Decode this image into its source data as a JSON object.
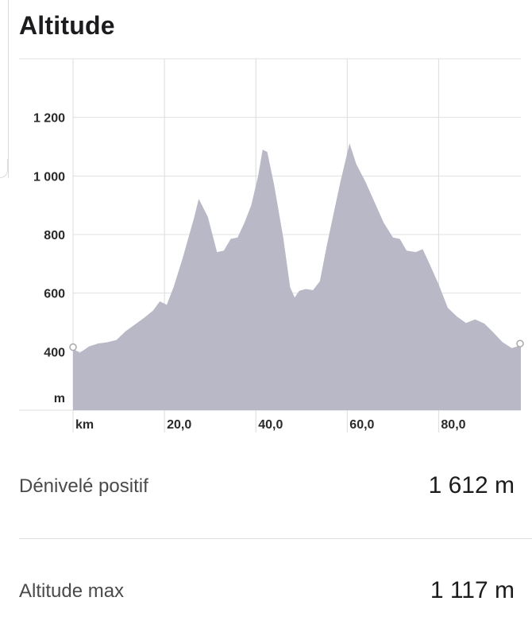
{
  "title": "Altitude",
  "chart_data": {
    "type": "area",
    "color": "#b9b8c6",
    "grid": true,
    "xlabel": "km",
    "ylabel": "m",
    "xlim": [
      0,
      98
    ],
    "ylim": [
      200,
      1400
    ],
    "x_ticks": [
      20,
      40,
      60,
      80
    ],
    "x_tick_labels": [
      "20,0",
      "40,0",
      "60,0",
      "80,0"
    ],
    "y_ticks": [
      400,
      600,
      800,
      1000,
      1200
    ],
    "y_tick_labels": [
      "400",
      "600",
      "800",
      "1 000",
      "1 200"
    ],
    "points": [
      [
        0,
        410
      ],
      [
        1.5,
        396
      ],
      [
        3.5,
        418
      ],
      [
        5.5,
        428
      ],
      [
        7.5,
        432
      ],
      [
        9.5,
        440
      ],
      [
        11.5,
        470
      ],
      [
        13.5,
        492
      ],
      [
        15.5,
        515
      ],
      [
        17.5,
        540
      ],
      [
        19,
        572
      ],
      [
        20.5,
        560
      ],
      [
        22,
        620
      ],
      [
        24,
        720
      ],
      [
        26.5,
        858
      ],
      [
        27.5,
        922
      ],
      [
        29.5,
        860
      ],
      [
        31.5,
        740
      ],
      [
        33,
        745
      ],
      [
        34.5,
        785
      ],
      [
        36,
        790
      ],
      [
        37.5,
        840
      ],
      [
        39,
        900
      ],
      [
        40.5,
        1000
      ],
      [
        41.5,
        1090
      ],
      [
        42.5,
        1082
      ],
      [
        44,
        970
      ],
      [
        46,
        790
      ],
      [
        47.5,
        620
      ],
      [
        48.5,
        585
      ],
      [
        49.5,
        608
      ],
      [
        51,
        614
      ],
      [
        52.5,
        610
      ],
      [
        54,
        640
      ],
      [
        55.5,
        760
      ],
      [
        57,
        870
      ],
      [
        58.5,
        980
      ],
      [
        60.5,
        1111
      ],
      [
        62,
        1040
      ],
      [
        64,
        980
      ],
      [
        66,
        910
      ],
      [
        68,
        840
      ],
      [
        70,
        790
      ],
      [
        71.5,
        785
      ],
      [
        73,
        745
      ],
      [
        75,
        740
      ],
      [
        76.5,
        750
      ],
      [
        78,
        700
      ],
      [
        80,
        630
      ],
      [
        82,
        550
      ],
      [
        84,
        520
      ],
      [
        86,
        498
      ],
      [
        88,
        510
      ],
      [
        90,
        496
      ],
      [
        92,
        465
      ],
      [
        94,
        432
      ],
      [
        96,
        412
      ],
      [
        98,
        422
      ]
    ]
  },
  "stats": [
    {
      "label": "Dénivelé positif",
      "value": "1 612 m"
    },
    {
      "label": "Altitude max",
      "value": "1 117 m"
    }
  ]
}
